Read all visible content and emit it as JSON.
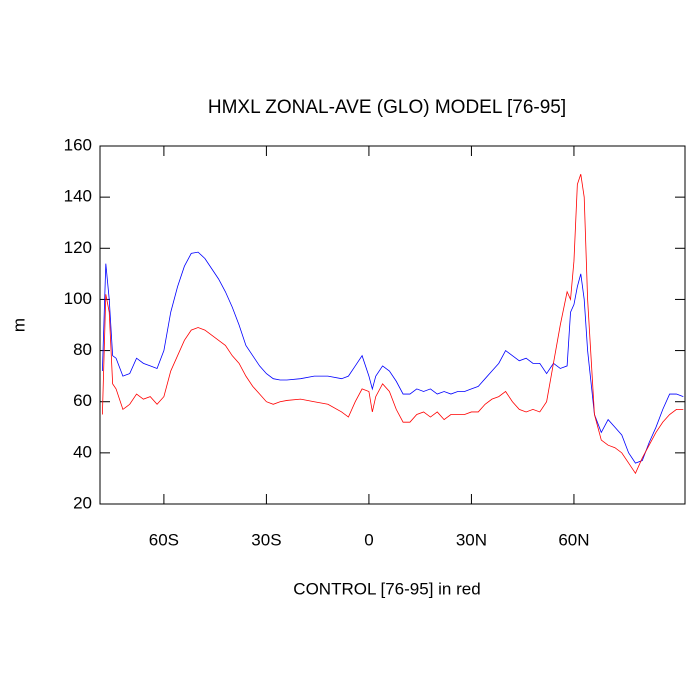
{
  "chart_data": {
    "type": "line",
    "title": "HMXL ZONAL-AVE (GLO) MODEL [76-95]",
    "x_label": "CONTROL [76-95] in red",
    "y_label": "m",
    "x": [
      -78,
      -77,
      -76,
      -75,
      -74,
      -72,
      -70,
      -68,
      -66,
      -64,
      -62,
      -60,
      -58,
      -56,
      -54,
      -52,
      -50,
      -48,
      -46,
      -44,
      -42,
      -40,
      -38,
      -36,
      -34,
      -32,
      -30,
      -28,
      -26,
      -24,
      -20,
      -16,
      -12,
      -8,
      -6,
      -4,
      -2,
      0,
      1,
      2,
      4,
      6,
      8,
      10,
      12,
      14,
      16,
      18,
      20,
      22,
      24,
      26,
      28,
      30,
      32,
      34,
      36,
      38,
      40,
      42,
      44,
      46,
      48,
      50,
      52,
      54,
      56,
      58,
      59,
      60,
      61,
      62,
      63,
      64,
      66,
      68,
      70,
      72,
      74,
      76,
      78,
      80,
      82,
      84,
      86,
      88,
      90,
      92
    ],
    "series": [
      {
        "color": "#0000ff",
        "values": [
          72,
          114,
          100,
          78,
          77,
          70,
          71,
          77,
          75,
          74,
          73,
          80,
          95,
          105,
          113,
          118,
          118.5,
          116,
          112,
          108,
          103,
          97,
          90,
          82,
          78,
          74,
          71,
          69,
          68.5,
          68.5,
          69,
          70,
          70,
          69,
          70,
          74,
          78,
          70,
          65,
          70,
          74,
          72,
          68,
          63,
          63,
          65,
          64,
          65,
          63,
          64,
          63,
          64,
          64,
          65,
          66,
          69,
          72,
          75,
          80,
          78,
          76,
          77,
          75,
          75,
          71,
          75,
          73,
          74,
          95,
          98,
          105,
          110,
          100,
          80,
          55,
          48,
          53,
          50,
          47,
          40,
          36,
          37,
          44,
          50,
          57,
          63,
          63,
          62
        ]
      },
      {
        "color": "#ff0000",
        "values": [
          55,
          102,
          95,
          67,
          65,
          57,
          59,
          63,
          61,
          62,
          59,
          62,
          72,
          78,
          84,
          88,
          89,
          88,
          86,
          84,
          82,
          78,
          75,
          70,
          66,
          63,
          60,
          59,
          60,
          60.5,
          61,
          60,
          59,
          56,
          54,
          60,
          65,
          64,
          56,
          62,
          67,
          64,
          57,
          52,
          52,
          55,
          56,
          54,
          56,
          53,
          55,
          55,
          55,
          56,
          56,
          59,
          61,
          62,
          64,
          60,
          57,
          56,
          57,
          56,
          60,
          75,
          90,
          103,
          100,
          115,
          145,
          149,
          140,
          100,
          55,
          45,
          43,
          42,
          40,
          36,
          32,
          38,
          43,
          48,
          52,
          55,
          57,
          57
        ]
      }
    ],
    "xlim": [
      -78.7,
      92.5
    ],
    "ylim": [
      20,
      160
    ],
    "xticks": [
      {
        "value": -60,
        "label": "60S"
      },
      {
        "value": -30,
        "label": "30S"
      },
      0,
      {
        "value": 30,
        "label": "30N"
      },
      {
        "value": 60,
        "label": "60N"
      }
    ],
    "yticks": [
      20,
      40,
      60,
      80,
      100,
      120,
      140,
      160
    ]
  }
}
